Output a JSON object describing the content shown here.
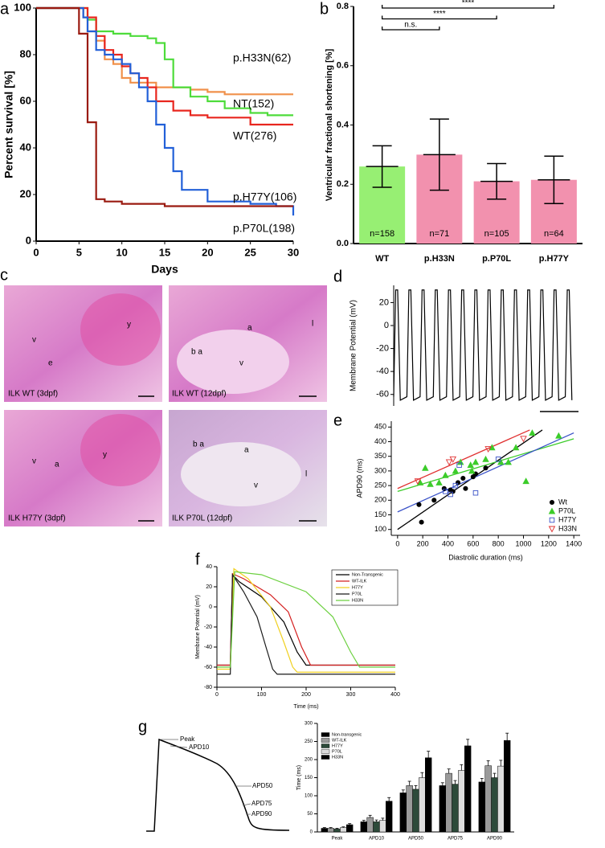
{
  "chart_data": [
    {
      "panel": "a",
      "type": "line",
      "step": true,
      "xlabel": "Days",
      "ylabel": "Percent survival [%]",
      "xlim": [
        0,
        30
      ],
      "ylim": [
        0,
        100
      ],
      "xticks": [
        0,
        5,
        10,
        15,
        20,
        25,
        30
      ],
      "yticks": [
        0,
        20,
        40,
        60,
        80,
        100
      ],
      "series": [
        {
          "name": "p.H33N(62)",
          "color": "#f0904a",
          "x": [
            0,
            5,
            5.5,
            6,
            7,
            8,
            9,
            10,
            11,
            12,
            14,
            16,
            18,
            20,
            22,
            30
          ],
          "values": [
            100,
            100,
            96,
            90,
            86,
            78,
            76,
            70,
            68,
            68,
            66,
            66,
            65,
            64,
            63,
            63
          ]
        },
        {
          "name": "NT(152)",
          "color": "#4ddc3a",
          "x": [
            0,
            5,
            6,
            7,
            9,
            11,
            13,
            14,
            15,
            16,
            18,
            20,
            22,
            25,
            27,
            30
          ],
          "values": [
            100,
            100,
            95,
            90,
            89,
            88,
            87,
            85,
            78,
            66,
            62,
            60,
            57,
            55,
            54,
            54
          ]
        },
        {
          "name": "WT(276)",
          "color": "#e8261e",
          "x": [
            0,
            5,
            6,
            7,
            8,
            9,
            10,
            11,
            12,
            13,
            14,
            16,
            18,
            20,
            25,
            30
          ],
          "values": [
            100,
            100,
            96,
            88,
            82,
            80,
            75,
            72,
            70,
            66,
            60,
            56,
            54,
            53,
            50,
            50
          ]
        },
        {
          "name": "p.H77Y(106)",
          "color": "#2260d8",
          "x": [
            0,
            5,
            5.5,
            6,
            7,
            8,
            9,
            10,
            11,
            12,
            13,
            14,
            15,
            16,
            17,
            20,
            25,
            28,
            30
          ],
          "values": [
            100,
            100,
            96,
            90,
            82,
            80,
            78,
            76,
            72,
            66,
            60,
            50,
            40,
            30,
            22,
            17,
            16,
            15,
            11
          ]
        },
        {
          "name": "p.P70L(198)",
          "color": "#9a1a10",
          "x": [
            0,
            5,
            6,
            7,
            8,
            10,
            15,
            30
          ],
          "values": [
            100,
            89,
            51,
            18,
            17,
            16,
            15,
            15
          ]
        }
      ]
    },
    {
      "panel": "b",
      "type": "bar",
      "ylabel": "Ventricular fractional shortening [%]",
      "ylim": [
        0,
        0.8
      ],
      "yticks": [
        {
          "value": 0,
          "label": "0.0"
        },
        0.2,
        0.4,
        0.6,
        {
          "value": 0.8,
          "label": "0.8"
        }
      ],
      "categories": [
        "WT",
        "p.H33N",
        "p.P70L",
        "p.H77Y"
      ],
      "values": [
        0.26,
        0.3,
        0.21,
        0.215
      ],
      "errors": [
        0.07,
        0.12,
        0.06,
        0.08
      ],
      "colors": [
        "#97ef73",
        "#f291ae",
        "#f291ae",
        "#f291ae"
      ],
      "n_labels": [
        "n=158",
        "n=71",
        "n=105",
        "n=64"
      ],
      "annotations": [
        "n.s.",
        "****",
        "****"
      ]
    },
    {
      "panel": "d",
      "type": "line",
      "ylabel": "Membrane Potential (mV)",
      "xlim": [
        0,
        14
      ],
      "ylim": [
        -70,
        35
      ],
      "yticks": [
        -60,
        -40,
        -20,
        0,
        20
      ],
      "series": [
        {
          "color": "#000000",
          "x": [
            0,
            0.15,
            0.3,
            0.5,
            1,
            1.15,
            1.3,
            1.5,
            2,
            2.15,
            2.3,
            2.5,
            3,
            3.15,
            3.3,
            3.5,
            4,
            4.15,
            4.3,
            4.5,
            5,
            5.15,
            5.3,
            5.5,
            6,
            6.15,
            6.3,
            6.5,
            7,
            7.15,
            7.3,
            7.5,
            8,
            8.15,
            8.3,
            8.5,
            9,
            9.15,
            9.3,
            9.5,
            10,
            10.15,
            10.3,
            10.5,
            11,
            11.15,
            11.3,
            11.5,
            12,
            12.15,
            12.3,
            12.5,
            13,
            13.15,
            13.3,
            13.5
          ],
          "values": [
            -62,
            31,
            31,
            -65,
            -62,
            31,
            31,
            -65,
            -62,
            31,
            31,
            -65,
            -62,
            31,
            31,
            -65,
            -62,
            31,
            31,
            -65,
            -62,
            31,
            31,
            -65,
            -62,
            31,
            31,
            -65,
            -62,
            31,
            31,
            -65,
            -62,
            31,
            31,
            -65,
            -62,
            31,
            31,
            -65,
            -62,
            31,
            31,
            -65,
            -62,
            31,
            31,
            -65,
            -62,
            31,
            31,
            -65,
            -62,
            31,
            31,
            -65
          ]
        }
      ]
    },
    {
      "panel": "e",
      "type": "scatter",
      "xlabel": "Diastrolic duration (ms)",
      "ylabel": "APD90 (ms)",
      "xlim": [
        -50,
        1450
      ],
      "ylim": [
        80,
        470
      ],
      "xticks": [
        0,
        200,
        400,
        600,
        800,
        1000,
        1200,
        1400
      ],
      "yticks": [
        100,
        150,
        200,
        250,
        300,
        350,
        400,
        450
      ],
      "series": [
        {
          "name": "Wt",
          "color": "#000000",
          "marker": "circle",
          "x": [
            170,
            190,
            290,
            370,
            420,
            440,
            480,
            520,
            540,
            600,
            620,
            700
          ],
          "values": [
            185,
            125,
            200,
            240,
            235,
            230,
            260,
            275,
            240,
            280,
            290,
            310
          ],
          "fit_x": [
            0,
            1150
          ],
          "fit_y": [
            100,
            440
          ]
        },
        {
          "name": "P70L",
          "color": "#3ccc2a",
          "marker": "triangle",
          "x": [
            180,
            220,
            260,
            330,
            380,
            460,
            500,
            580,
            590,
            620,
            700,
            750,
            820,
            880,
            940,
            1020,
            1070,
            1280
          ],
          "values": [
            260,
            310,
            255,
            260,
            285,
            300,
            330,
            320,
            300,
            330,
            340,
            380,
            330,
            330,
            380,
            265,
            430,
            420
          ],
          "fit_x": [
            0,
            1400
          ],
          "fit_y": [
            230,
            410
          ]
        },
        {
          "name": "H77Y",
          "color": "#3a52c8",
          "marker": "square-open",
          "x": [
            380,
            420,
            460,
            490,
            620,
            800
          ],
          "values": [
            230,
            220,
            250,
            320,
            225,
            340
          ],
          "fit_x": [
            0,
            1400
          ],
          "fit_y": [
            160,
            430
          ]
        },
        {
          "name": "H33N",
          "color": "#e03030",
          "marker": "triangle-down-open",
          "x": [
            160,
            410,
            440,
            720,
            1000
          ],
          "values": [
            265,
            330,
            340,
            375,
            410
          ],
          "fit_x": [
            0,
            1050
          ],
          "fit_y": [
            240,
            440
          ]
        }
      ]
    },
    {
      "panel": "f",
      "type": "line",
      "xlabel": "Time (ms)",
      "ylabel": "Membrane Potential (mV)",
      "xlim": [
        0,
        400
      ],
      "ylim": [
        -80,
        40
      ],
      "xticks": [
        0,
        100,
        200,
        300,
        400
      ],
      "yticks": [
        -80,
        -60,
        -40,
        -20,
        0,
        20,
        40
      ],
      "series": [
        {
          "name": "Non-Transgenic",
          "color": "#000000",
          "x": [
            0,
            30,
            35,
            50,
            100,
            150,
            180,
            200,
            400
          ],
          "values": [
            -58,
            -58,
            32,
            25,
            10,
            -15,
            -45,
            -58,
            -58
          ]
        },
        {
          "name": "WT-ILK",
          "color": "#d42020",
          "x": [
            0,
            30,
            35,
            60,
            120,
            160,
            190,
            210,
            400
          ],
          "values": [
            -58,
            -58,
            33,
            28,
            12,
            -5,
            -40,
            -58,
            -58
          ]
        },
        {
          "name": "H77Y",
          "color": "#f0d020",
          "x": [
            0,
            30,
            38,
            70,
            120,
            150,
            170,
            180,
            400
          ],
          "values": [
            -62,
            -62,
            38,
            28,
            0,
            -35,
            -60,
            -65,
            -65
          ]
        },
        {
          "name": "P70L",
          "color": "#1a1a1a",
          "x": [
            0,
            30,
            35,
            60,
            90,
            110,
            125,
            135,
            400
          ],
          "values": [
            -67,
            -67,
            32,
            15,
            -10,
            -40,
            -62,
            -67,
            -67
          ]
        },
        {
          "name": "H33N",
          "color": "#6cd040",
          "x": [
            0,
            30,
            40,
            100,
            200,
            260,
            300,
            320,
            400
          ],
          "values": [
            -60,
            -60,
            35,
            32,
            15,
            -10,
            -45,
            -60,
            -60
          ]
        }
      ]
    },
    {
      "panel": "g",
      "type": "grouped-bar",
      "ylabel": "Time (ms)",
      "ylim": [
        0,
        300
      ],
      "yticks": [
        0,
        50,
        100,
        150,
        200,
        250,
        300
      ],
      "categories": [
        "Peak",
        "APD10",
        "APD50",
        "APD75",
        "APD90"
      ],
      "series": [
        {
          "name": "Non-transgenic",
          "color": "#000000",
          "values": [
            10,
            28,
            108,
            128,
            138
          ],
          "errors": [
            2,
            4,
            8,
            8,
            10
          ]
        },
        {
          "name": "WT-ILK",
          "color": "#9a9a9a",
          "values": [
            10,
            40,
            128,
            162,
            183
          ],
          "errors": [
            2,
            6,
            12,
            12,
            14
          ]
        },
        {
          "name": "H77Y",
          "color": "#2d4a3a",
          "values": [
            8,
            28,
            118,
            132,
            150
          ],
          "errors": [
            2,
            5,
            10,
            10,
            12
          ]
        },
        {
          "name": "P70L",
          "color": "#dddddd",
          "values": [
            12,
            32,
            150,
            170,
            182
          ],
          "errors": [
            2,
            6,
            14,
            16,
            16
          ]
        },
        {
          "name": "H33N",
          "color": "#000000",
          "values": [
            20,
            85,
            205,
            238,
            253
          ],
          "errors": [
            3,
            10,
            18,
            18,
            20
          ]
        }
      ]
    }
  ],
  "histology": {
    "panel": "c",
    "images": [
      {
        "caption": "ILK WT (3dpf)",
        "labels": [
          "v",
          "e",
          "y"
        ]
      },
      {
        "caption": "ILK WT (12dpf)",
        "labels": [
          "a",
          "b a",
          "v",
          "l"
        ]
      },
      {
        "caption": "ILK H77Y (3dpf)",
        "labels": [
          "v",
          "a",
          "y"
        ]
      },
      {
        "caption": "ILK P70L (12dpf)",
        "labels": [
          "b a",
          "a",
          "v",
          "l"
        ]
      }
    ]
  },
  "ap_diagram": {
    "labels": [
      "Peak",
      "APD10",
      "APD50",
      "APD75",
      "APD90"
    ]
  }
}
